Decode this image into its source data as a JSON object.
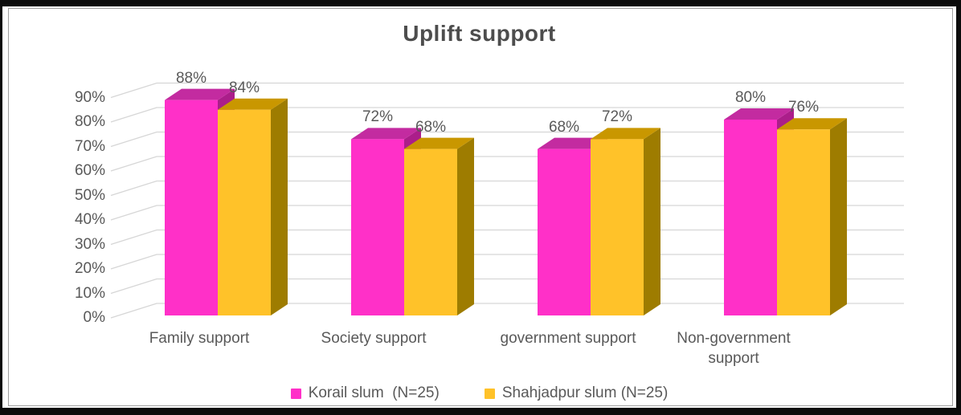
{
  "frame": {
    "background": "#FFFFFF",
    "outer_border_color": "#0B0B0B",
    "inner_border_color": "#A0A0A0"
  },
  "chart_data": {
    "type": "bar",
    "style": "3d-clustered-column",
    "title": "Uplift support",
    "title_color": "#4D4D4D",
    "text_color": "#595959",
    "grid_color": "#D6D6D6",
    "grid": true,
    "legend_position": "bottom",
    "categories": [
      "Family support",
      "Society support",
      "government support",
      "Non-government support"
    ],
    "series": [
      {
        "name": "Korail slum  (N=25)",
        "color": "#FF30C8",
        "color_top": "#C32BA0",
        "color_side": "#AB1E8A",
        "values": [
          88,
          72,
          68,
          80
        ]
      },
      {
        "name": "Shahjadpur slum (N=25)",
        "color": "#FFC229",
        "color_top": "#C99700",
        "color_side": "#9E7C00",
        "values": [
          84,
          68,
          72,
          76
        ]
      }
    ],
    "value_label_format": "{v}%",
    "y_axis": {
      "min": 0,
      "max": 90,
      "step": 10,
      "tick_labels": [
        "0%",
        "10%",
        "20%",
        "30%",
        "40%",
        "50%",
        "60%",
        "70%",
        "80%",
        "90%"
      ]
    }
  }
}
